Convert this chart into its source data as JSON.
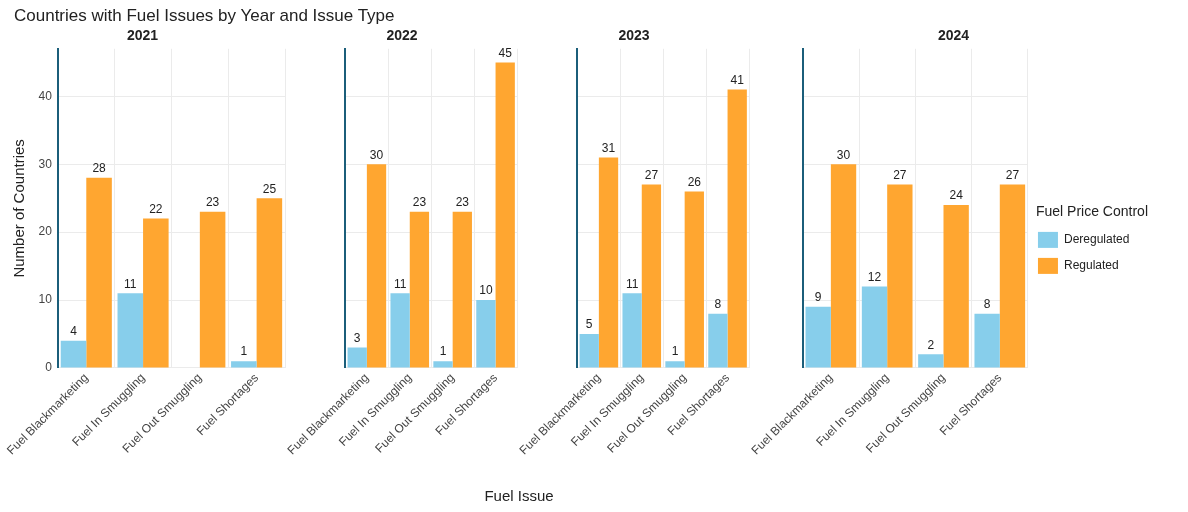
{
  "chart_data": [
    {
      "type": "bar",
      "title": "Countries with Fuel Issues by Year and Issue Type",
      "subtitle": "2021",
      "ylabel": "Number of Countries",
      "categories": [
        "Fuel Blackmarketing",
        "Fuel In Smuggling",
        "Fuel Out Smuggling",
        "Fuel Shortages"
      ],
      "series": [
        {
          "color": "#87ceeb",
          "values": [
            4,
            11,
            null,
            1
          ]
        },
        {
          "color": "#ffa630",
          "values": [
            28,
            22,
            23,
            25
          ]
        }
      ],
      "ylim": [
        0,
        47
      ],
      "yticks": [
        0,
        10,
        20,
        30,
        40
      ],
      "grid": true,
      "data_labels": true
    },
    {
      "type": "bar",
      "subtitle": "2022",
      "xlabel": "Fuel Issue",
      "categories": [
        "Fuel Blackmarketing",
        "Fuel In Smuggling",
        "Fuel Out Smuggling",
        "Fuel Shortages"
      ],
      "series": [
        {
          "color": "#87ceeb",
          "values": [
            3,
            11,
            1,
            10
          ]
        },
        {
          "color": "#ffa630",
          "values": [
            30,
            23,
            23,
            45
          ]
        }
      ],
      "ylim": [
        0,
        47
      ],
      "yticks": [
        0,
        10,
        20,
        30,
        40
      ],
      "grid": true,
      "data_labels": true,
      "tick_labels": "x"
    },
    {
      "type": "bar",
      "subtitle": "2023",
      "categories": [
        "Fuel Blackmarketing",
        "Fuel In Smuggling",
        "Fuel Out Smuggling",
        "Fuel Shortages"
      ],
      "series": [
        {
          "color": "#87ceeb",
          "values": [
            5,
            11,
            1,
            8
          ]
        },
        {
          "color": "#ffa630",
          "values": [
            31,
            27,
            26,
            41
          ]
        }
      ],
      "ylim": [
        0,
        47
      ],
      "yticks": [
        0,
        10,
        20,
        30,
        40
      ],
      "grid": true,
      "data_labels": true,
      "tick_labels": "x"
    },
    {
      "type": "bar",
      "subtitle": "2024",
      "legend_title": "Fuel Price Control",
      "legend": "right",
      "categories": [
        "Fuel Blackmarketing",
        "Fuel In Smuggling",
        "Fuel Out Smuggling",
        "Fuel Shortages"
      ],
      "series": [
        {
          "name": "Deregulated",
          "color": "#87ceeb",
          "values": [
            9,
            12,
            2,
            8
          ]
        },
        {
          "name": "Regulated",
          "color": "#ffa630",
          "values": [
            30,
            27,
            24,
            27
          ]
        }
      ],
      "ylim": [
        0,
        47
      ],
      "yticks": [
        0,
        10,
        20,
        30,
        40
      ],
      "grid": true,
      "data_labels": true,
      "tick_labels": "x"
    }
  ]
}
